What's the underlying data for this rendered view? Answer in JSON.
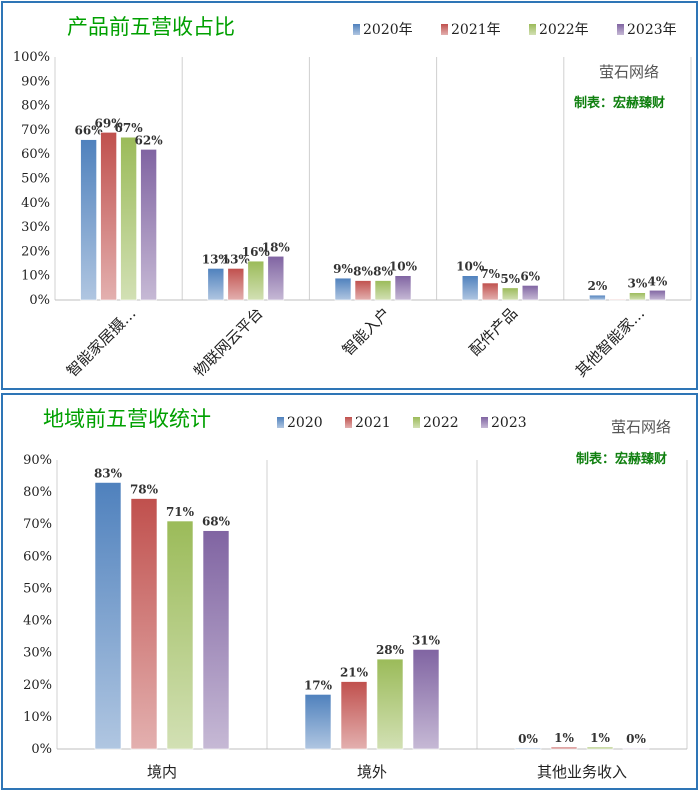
{
  "colors": {
    "series": [
      "#4f81bd",
      "#c0504d",
      "#9bbb59",
      "#8064a2"
    ],
    "title": "#00a000",
    "border": "#2e75b6"
  },
  "chart_data": [
    {
      "type": "bar",
      "title": "产品前五营收占比",
      "categories": [
        "智能家居摄…",
        "物联网云平台",
        "智能入户",
        "配件产品",
        "其他智能家…"
      ],
      "series": [
        {
          "name": "2020年",
          "values": [
            66,
            13,
            9,
            10,
            2
          ],
          "labels": [
            "66%",
            "13%",
            "9%",
            "10%",
            "2%"
          ]
        },
        {
          "name": "2021年",
          "values": [
            69,
            13,
            8,
            7,
            0
          ],
          "labels": [
            "69%",
            "13%",
            "8%",
            "7%",
            ""
          ]
        },
        {
          "name": "2022年",
          "values": [
            67,
            16,
            8,
            5,
            3
          ],
          "labels": [
            "67%",
            "16%",
            "8%",
            "5%",
            "3%"
          ]
        },
        {
          "name": "2023年",
          "values": [
            62,
            18,
            10,
            6,
            4
          ],
          "labels": [
            "62%",
            "18%",
            "10%",
            "6%",
            "4%"
          ]
        }
      ],
      "yticks": [
        "0%",
        "10%",
        "20%",
        "30%",
        "40%",
        "50%",
        "60%",
        "70%",
        "80%",
        "90%",
        "100%"
      ],
      "ylim": [
        0,
        100
      ],
      "legend_position": "top-right",
      "grid": "vertical",
      "watermark": "萤石网络",
      "credit": "制表：宏赫臻财"
    },
    {
      "type": "bar",
      "title": "地域前五营收统计",
      "categories": [
        "境内",
        "境外",
        "其他业务收入"
      ],
      "series": [
        {
          "name": "2020",
          "values": [
            83,
            17,
            0.3
          ],
          "labels": [
            "83%",
            "17%",
            "0%"
          ]
        },
        {
          "name": "2021",
          "values": [
            78,
            21,
            0.6
          ],
          "labels": [
            "78%",
            "21%",
            "1%"
          ]
        },
        {
          "name": "2022",
          "values": [
            71,
            28,
            0.6
          ],
          "labels": [
            "71%",
            "28%",
            "1%"
          ]
        },
        {
          "name": "2023",
          "values": [
            68,
            31,
            0.2
          ],
          "labels": [
            "68%",
            "31%",
            "0%"
          ]
        }
      ],
      "yticks": [
        "0%",
        "10%",
        "20%",
        "30%",
        "40%",
        "50%",
        "60%",
        "70%",
        "80%",
        "90%"
      ],
      "ylim": [
        0,
        90
      ],
      "legend_position": "top",
      "grid": "vertical",
      "watermark": "萤石网络",
      "credit": "制表：宏赫臻财"
    }
  ]
}
